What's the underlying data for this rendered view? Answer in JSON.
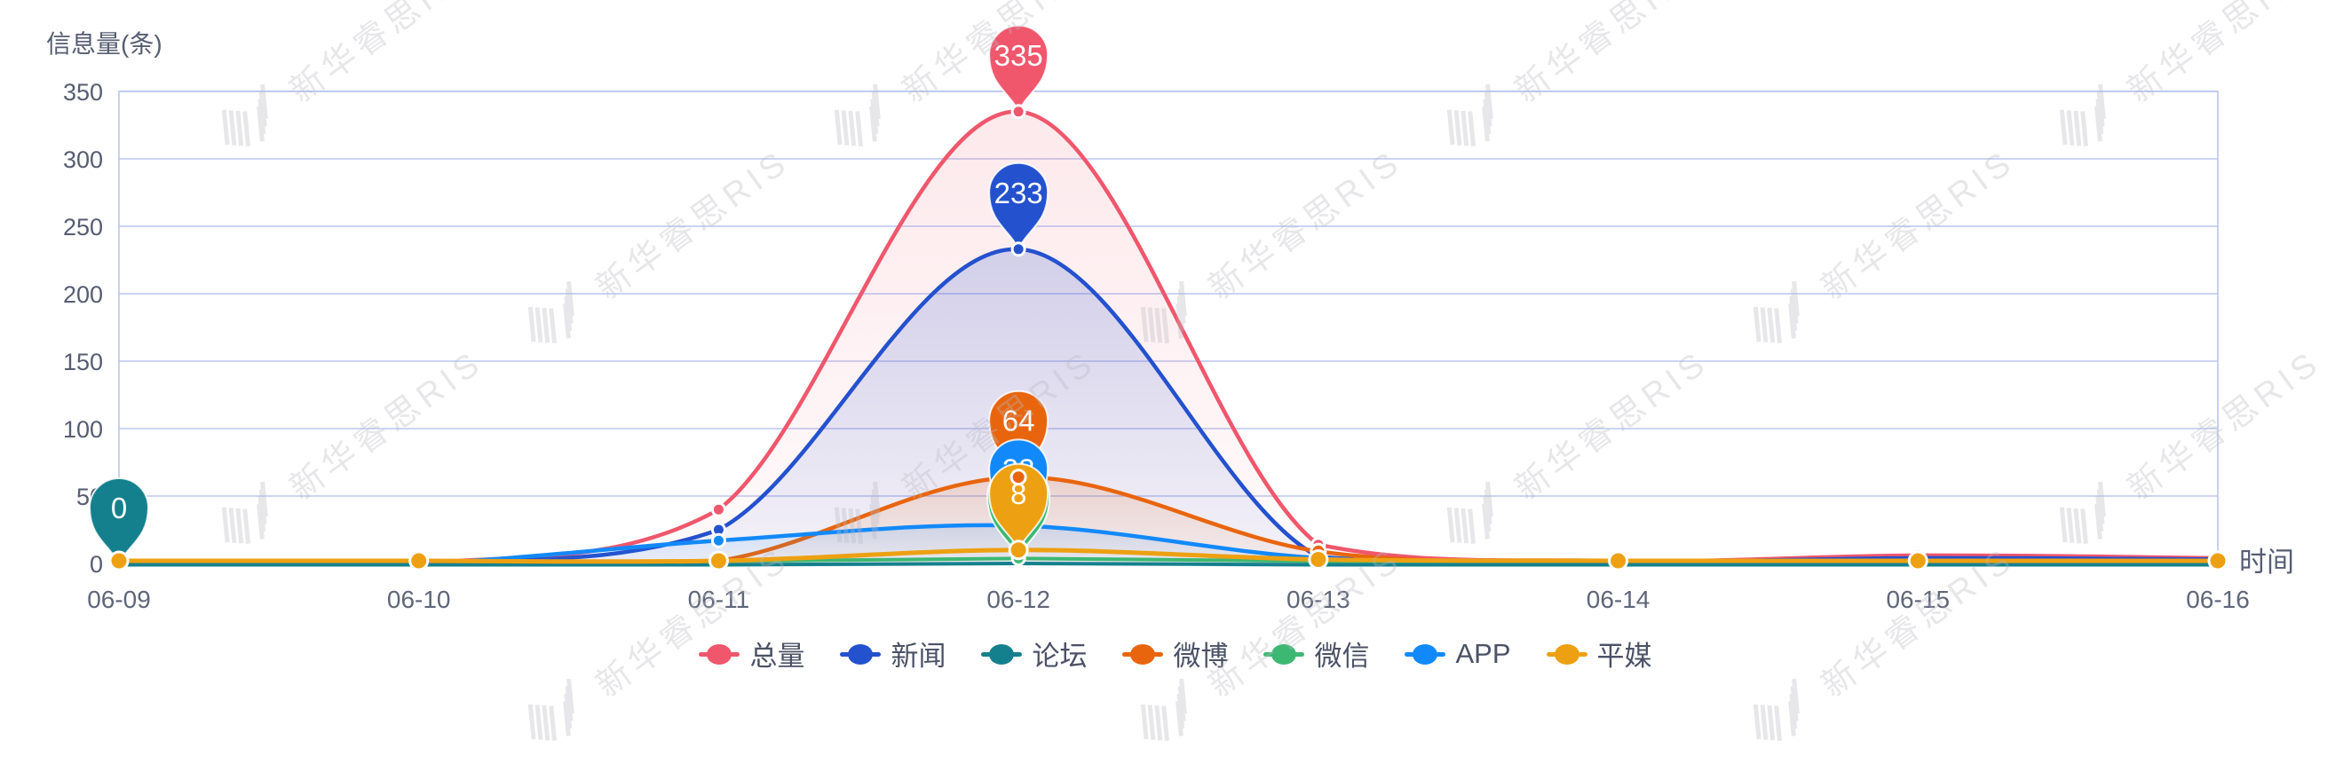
{
  "watermark_text": "新华睿思RIS",
  "chart_data": {
    "type": "line",
    "title": "",
    "ylabel": "信息量(条)",
    "xlabel": "时间",
    "ylim": [
      0,
      350
    ],
    "y_tick_step": 50,
    "y_ticks": [
      0,
      50,
      100,
      150,
      200,
      250,
      300,
      350
    ],
    "grid": true,
    "smooth": true,
    "legend_position": "bottom",
    "categories": [
      "06-09",
      "06-10",
      "06-11",
      "06-12",
      "06-13",
      "06-14",
      "06-15",
      "06-16"
    ],
    "series": [
      {
        "name": "总量",
        "color": "#f0566c",
        "values": [
          0,
          0,
          40,
          335,
          14,
          2,
          6,
          4
        ],
        "fill": true
      },
      {
        "name": "新闻",
        "color": "#2451ce",
        "values": [
          0,
          0,
          25,
          233,
          5,
          1,
          4,
          3
        ],
        "fill": true
      },
      {
        "name": "论坛",
        "color": "#15808d",
        "values": [
          0,
          0,
          0,
          1,
          0,
          0,
          0,
          0
        ],
        "fill": false
      },
      {
        "name": "微博",
        "color": "#e8650e",
        "values": [
          0,
          0,
          2,
          64,
          9,
          1,
          1,
          1
        ],
        "fill": true
      },
      {
        "name": "微信",
        "color": "#3db872",
        "values": [
          0,
          0,
          1,
          3,
          1,
          0,
          0,
          0
        ],
        "fill": false
      },
      {
        "name": "APP",
        "color": "#1289fb",
        "values": [
          0,
          0,
          17,
          28,
          4,
          1,
          2,
          2
        ],
        "fill": true
      },
      {
        "name": "平媒",
        "color": "#eda012",
        "values": [
          0,
          0,
          0,
          8,
          1,
          0,
          0,
          0
        ],
        "fill": false
      }
    ],
    "pins": [
      {
        "series": "论坛",
        "category": "06-09",
        "label": "0"
      },
      {
        "series": "总量",
        "category": "06-12",
        "label": "335"
      },
      {
        "series": "新闻",
        "category": "06-12",
        "label": "233"
      },
      {
        "series": "微博",
        "category": "06-12",
        "label": "64"
      },
      {
        "series": "APP",
        "category": "06-12",
        "label": "28"
      },
      {
        "series": "微信",
        "category": "06-12",
        "label": ""
      },
      {
        "series": "平媒",
        "category": "06-12",
        "label": "8"
      }
    ],
    "point_markers": [
      {
        "series": "总量",
        "categories": [
          "06-11",
          "06-12",
          "06-13",
          "06-15"
        ]
      },
      {
        "series": "新闻",
        "categories": [
          "06-11",
          "06-12"
        ]
      },
      {
        "series": "APP",
        "categories": [
          "06-11"
        ]
      },
      {
        "series": "微博",
        "categories": [
          "06-12",
          "06-13"
        ]
      },
      {
        "series": "微信",
        "categories": [
          "06-12"
        ]
      },
      {
        "series": "平媒",
        "categories": [
          "06-09",
          "06-10",
          "06-11",
          "06-12",
          "06-13",
          "06-14",
          "06-15",
          "06-16"
        ]
      }
    ]
  }
}
